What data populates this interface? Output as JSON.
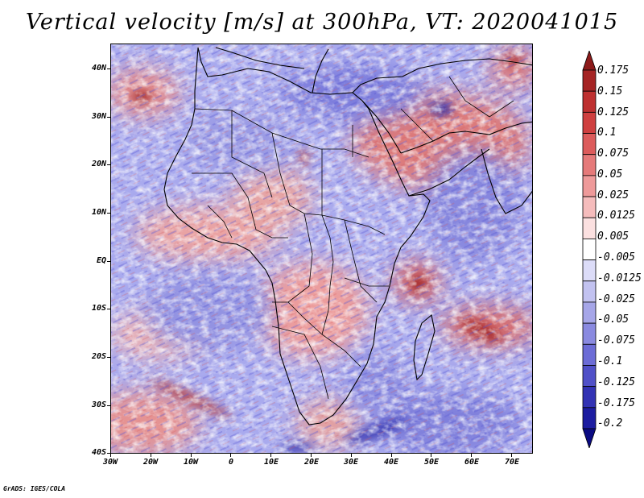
{
  "title": "Vertical velocity [m/s] at 300hPa, VT: 2020041015",
  "footer": "GrADS: IGES/COLA",
  "map": {
    "latitude_labels": [
      "40N",
      "30N",
      "20N",
      "10N",
      "EQ",
      "10S",
      "20S",
      "30S",
      "40S"
    ],
    "longitude_labels": [
      "30W",
      "20W",
      "10W",
      "0",
      "10E",
      "20E",
      "30E",
      "40E",
      "50E",
      "60E",
      "70E"
    ]
  },
  "colorbar": {
    "labels": [
      "0.175",
      "0.15",
      "0.125",
      "0.1",
      "0.075",
      "0.05",
      "0.025",
      "0.0125",
      "0.005",
      "-0.005",
      "-0.0125",
      "-0.025",
      "-0.05",
      "-0.075",
      "-0.1",
      "-0.125",
      "-0.175",
      "-0.2"
    ],
    "colors": [
      "#8c1a1a",
      "#a52424",
      "#be3030",
      "#cf4040",
      "#dc5c5c",
      "#e57a7a",
      "#ee9a9a",
      "#f5bcbc",
      "#fbe0e0",
      "#ffffff",
      "#dcdcf8",
      "#c2c2f0",
      "#a6a6e8",
      "#8a8ae0",
      "#6c6cd6",
      "#5050c8",
      "#3232b4",
      "#1c1ca0",
      "#0a0a82"
    ]
  }
}
